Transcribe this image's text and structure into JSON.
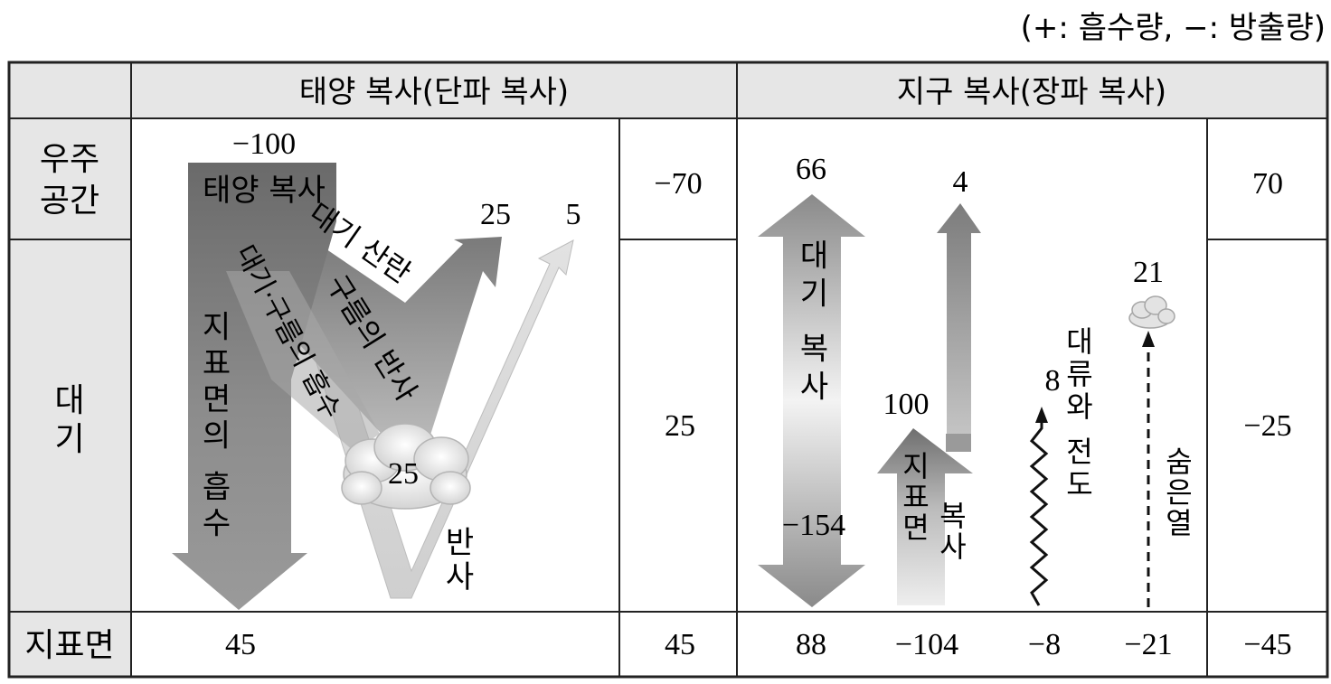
{
  "legend": "(+: 흡수량, −: 방출량)",
  "headers": {
    "solar": "태양 복사(단파 복사)",
    "earth": "지구 복사(장파 복사)"
  },
  "rows": {
    "space_line1": "우주",
    "space_line2": "공간",
    "atmosphere_line1": "대",
    "atmosphere_line2": "기",
    "surface": "지표면"
  },
  "solar": {
    "incoming_value": "−100",
    "incoming_label": "태양 복사",
    "scatter_label": "대기 산란",
    "cloud_reflect_label": "구름의 반사",
    "absorb_label": "대기·구름의 흡수",
    "surface_absorb_label": "지표면의 흡수",
    "surface_reflect_label": "반사",
    "to_space_25": "25",
    "to_space_5": "5",
    "cloud_value": "25",
    "surface_value": "45",
    "totals": {
      "space": "−70",
      "atmosphere": "25",
      "surface": "45"
    }
  },
  "earth": {
    "atm_rad_top": "66",
    "atm_rad_label": "대기 복사",
    "atm_rad_down": "−154",
    "surface_rad_top": "4",
    "surface_rad_value": "100",
    "surface_rad_label_col1": "지표면",
    "surface_rad_label_col2": "복사",
    "convection_top": "8",
    "convection_label": "대류와 전도",
    "latent_top": "21",
    "latent_label": "숨은열",
    "surface_values": [
      "88",
      "−104",
      "−8",
      "−21"
    ],
    "totals": {
      "space": "70",
      "atmosphere": "−25",
      "surface": "−45"
    }
  },
  "colors": {
    "header_fill": "#e6e6e6",
    "arrow_dark": "#6f6f6f",
    "arrow_light": "#d8d8d8",
    "border": "#222222"
  }
}
